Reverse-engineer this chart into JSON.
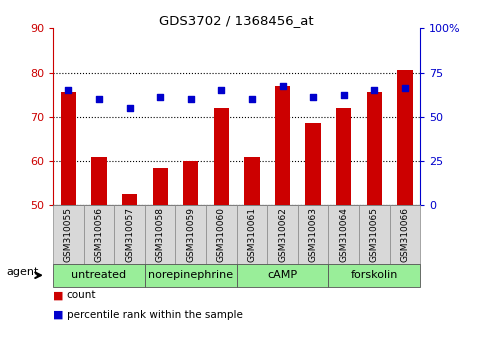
{
  "title": "GDS3702 / 1368456_at",
  "samples": [
    "GSM310055",
    "GSM310056",
    "GSM310057",
    "GSM310058",
    "GSM310059",
    "GSM310060",
    "GSM310061",
    "GSM310062",
    "GSM310063",
    "GSM310064",
    "GSM310065",
    "GSM310066"
  ],
  "count_values": [
    75.5,
    61.0,
    52.5,
    58.5,
    60.0,
    72.0,
    61.0,
    77.0,
    68.5,
    72.0,
    75.5,
    80.5
  ],
  "percentile_values": [
    76,
    74,
    72,
    74.5,
    74,
    76,
    74,
    77,
    74.5,
    75,
    76,
    76.5
  ],
  "percentile_scale": [
    0,
    25,
    50,
    75,
    100
  ],
  "count_yticks": [
    50,
    60,
    70,
    80,
    90
  ],
  "ylim_count": [
    50,
    90
  ],
  "ylim_pct": [
    0,
    100
  ],
  "groups": [
    {
      "label": "untreated",
      "start": 0,
      "end": 3
    },
    {
      "label": "norepinephrine",
      "start": 3,
      "end": 6
    },
    {
      "label": "cAMP",
      "start": 6,
      "end": 9
    },
    {
      "label": "forskolin",
      "start": 9,
      "end": 12
    }
  ],
  "group_color": "#99ee99",
  "bar_color": "#cc0000",
  "dot_color": "#0000cc",
  "xlabel_agent": "agent",
  "legend_count": "count",
  "legend_pct": "percentile rank within the sample",
  "ylabel_left_color": "#cc0000",
  "ylabel_right_color": "#0000cc",
  "tick_label_bg": "#d8d8d8"
}
